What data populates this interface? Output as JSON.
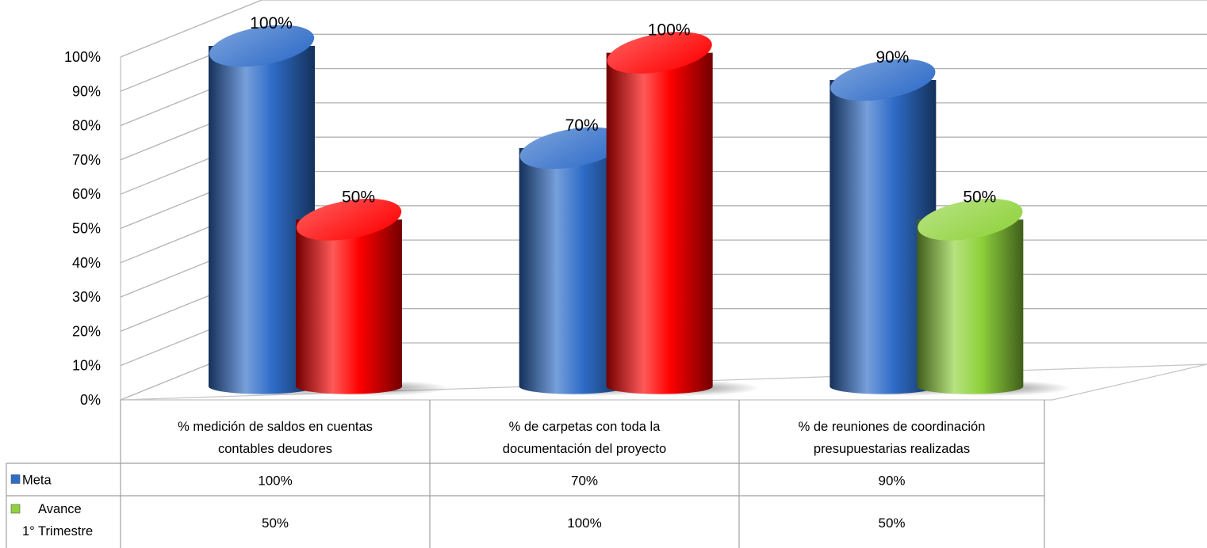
{
  "colors": {
    "meta": "#2e6cc8",
    "avance": "#8fd23c",
    "highlight": "#ff0000"
  },
  "chart_data": {
    "type": "bar",
    "categories": [
      "% medición de saldos en cuentas contables deudores",
      "% de carpetas con toda la documentación del proyecto",
      "% de reuniones de coordinación presupuestarias realizadas"
    ],
    "category_lines": [
      [
        "% medición de saldos en cuentas",
        "contables deudores"
      ],
      [
        "% de carpetas con toda la",
        "documentación del proyecto"
      ],
      [
        "% de reuniones de coordinación",
        "presupuestarias realizadas"
      ]
    ],
    "series": [
      {
        "name": "Meta",
        "values": [
          100,
          70,
          90
        ],
        "labels": [
          "100%",
          "70%",
          "90%"
        ],
        "legend_lines": [
          "Meta"
        ],
        "colors": [
          "#2e6cc8",
          "#2e6cc8",
          "#2e6cc8"
        ]
      },
      {
        "name": "Avance 1° Trimestre",
        "values": [
          50,
          100,
          50
        ],
        "labels": [
          "50%",
          "100%",
          "50%"
        ],
        "legend_lines": [
          "Avance",
          "1° Trimestre"
        ],
        "colors": [
          "#ff0000",
          "#ff0000",
          "#8fd23c"
        ]
      }
    ],
    "ylim": [
      0,
      100
    ],
    "yticks": [
      "0%",
      "10%",
      "20%",
      "30%",
      "40%",
      "50%",
      "60%",
      "70%",
      "80%",
      "90%",
      "100%"
    ],
    "grid": true,
    "legend": "data-table",
    "three_d": true
  }
}
